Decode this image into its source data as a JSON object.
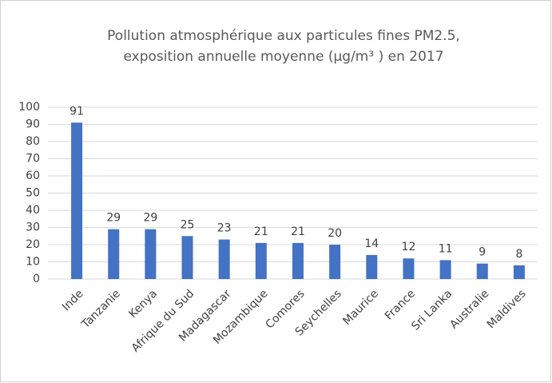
{
  "chart_data": {
    "type": "bar",
    "title": [
      "Pollution atmosphérique aux particules fines  PM2.5,",
      "exposition annuelle moyenne (µg/m³ ) en 2017"
    ],
    "categories": [
      "Inde",
      "Tanzanie",
      "Kenya",
      "Afrique du Sud",
      "Madagascar",
      "Mozambique",
      "Comores",
      "Seychelles",
      "Maurice",
      "France",
      "Sri Lanka",
      "Australie",
      "Maldives"
    ],
    "values": [
      91,
      29,
      29,
      25,
      23,
      21,
      21,
      20,
      14,
      12,
      11,
      9,
      8
    ],
    "color": "#4472c4",
    "ylim": [
      0,
      100
    ],
    "yticks": [
      0,
      10,
      20,
      30,
      40,
      50,
      60,
      70,
      80,
      90,
      100
    ],
    "grid": true
  }
}
